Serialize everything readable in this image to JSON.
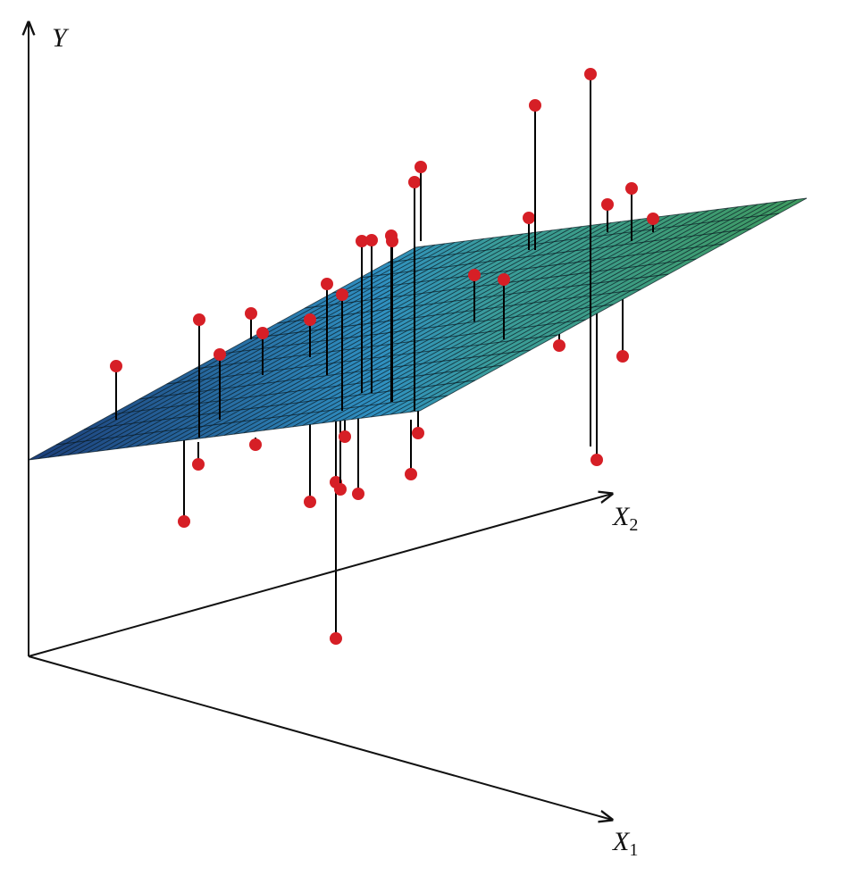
{
  "axes": {
    "y": {
      "label": "Y"
    },
    "x2": {
      "label": "X",
      "sub": "2"
    },
    "x1": {
      "label": "X",
      "sub": "1"
    }
  }
}
